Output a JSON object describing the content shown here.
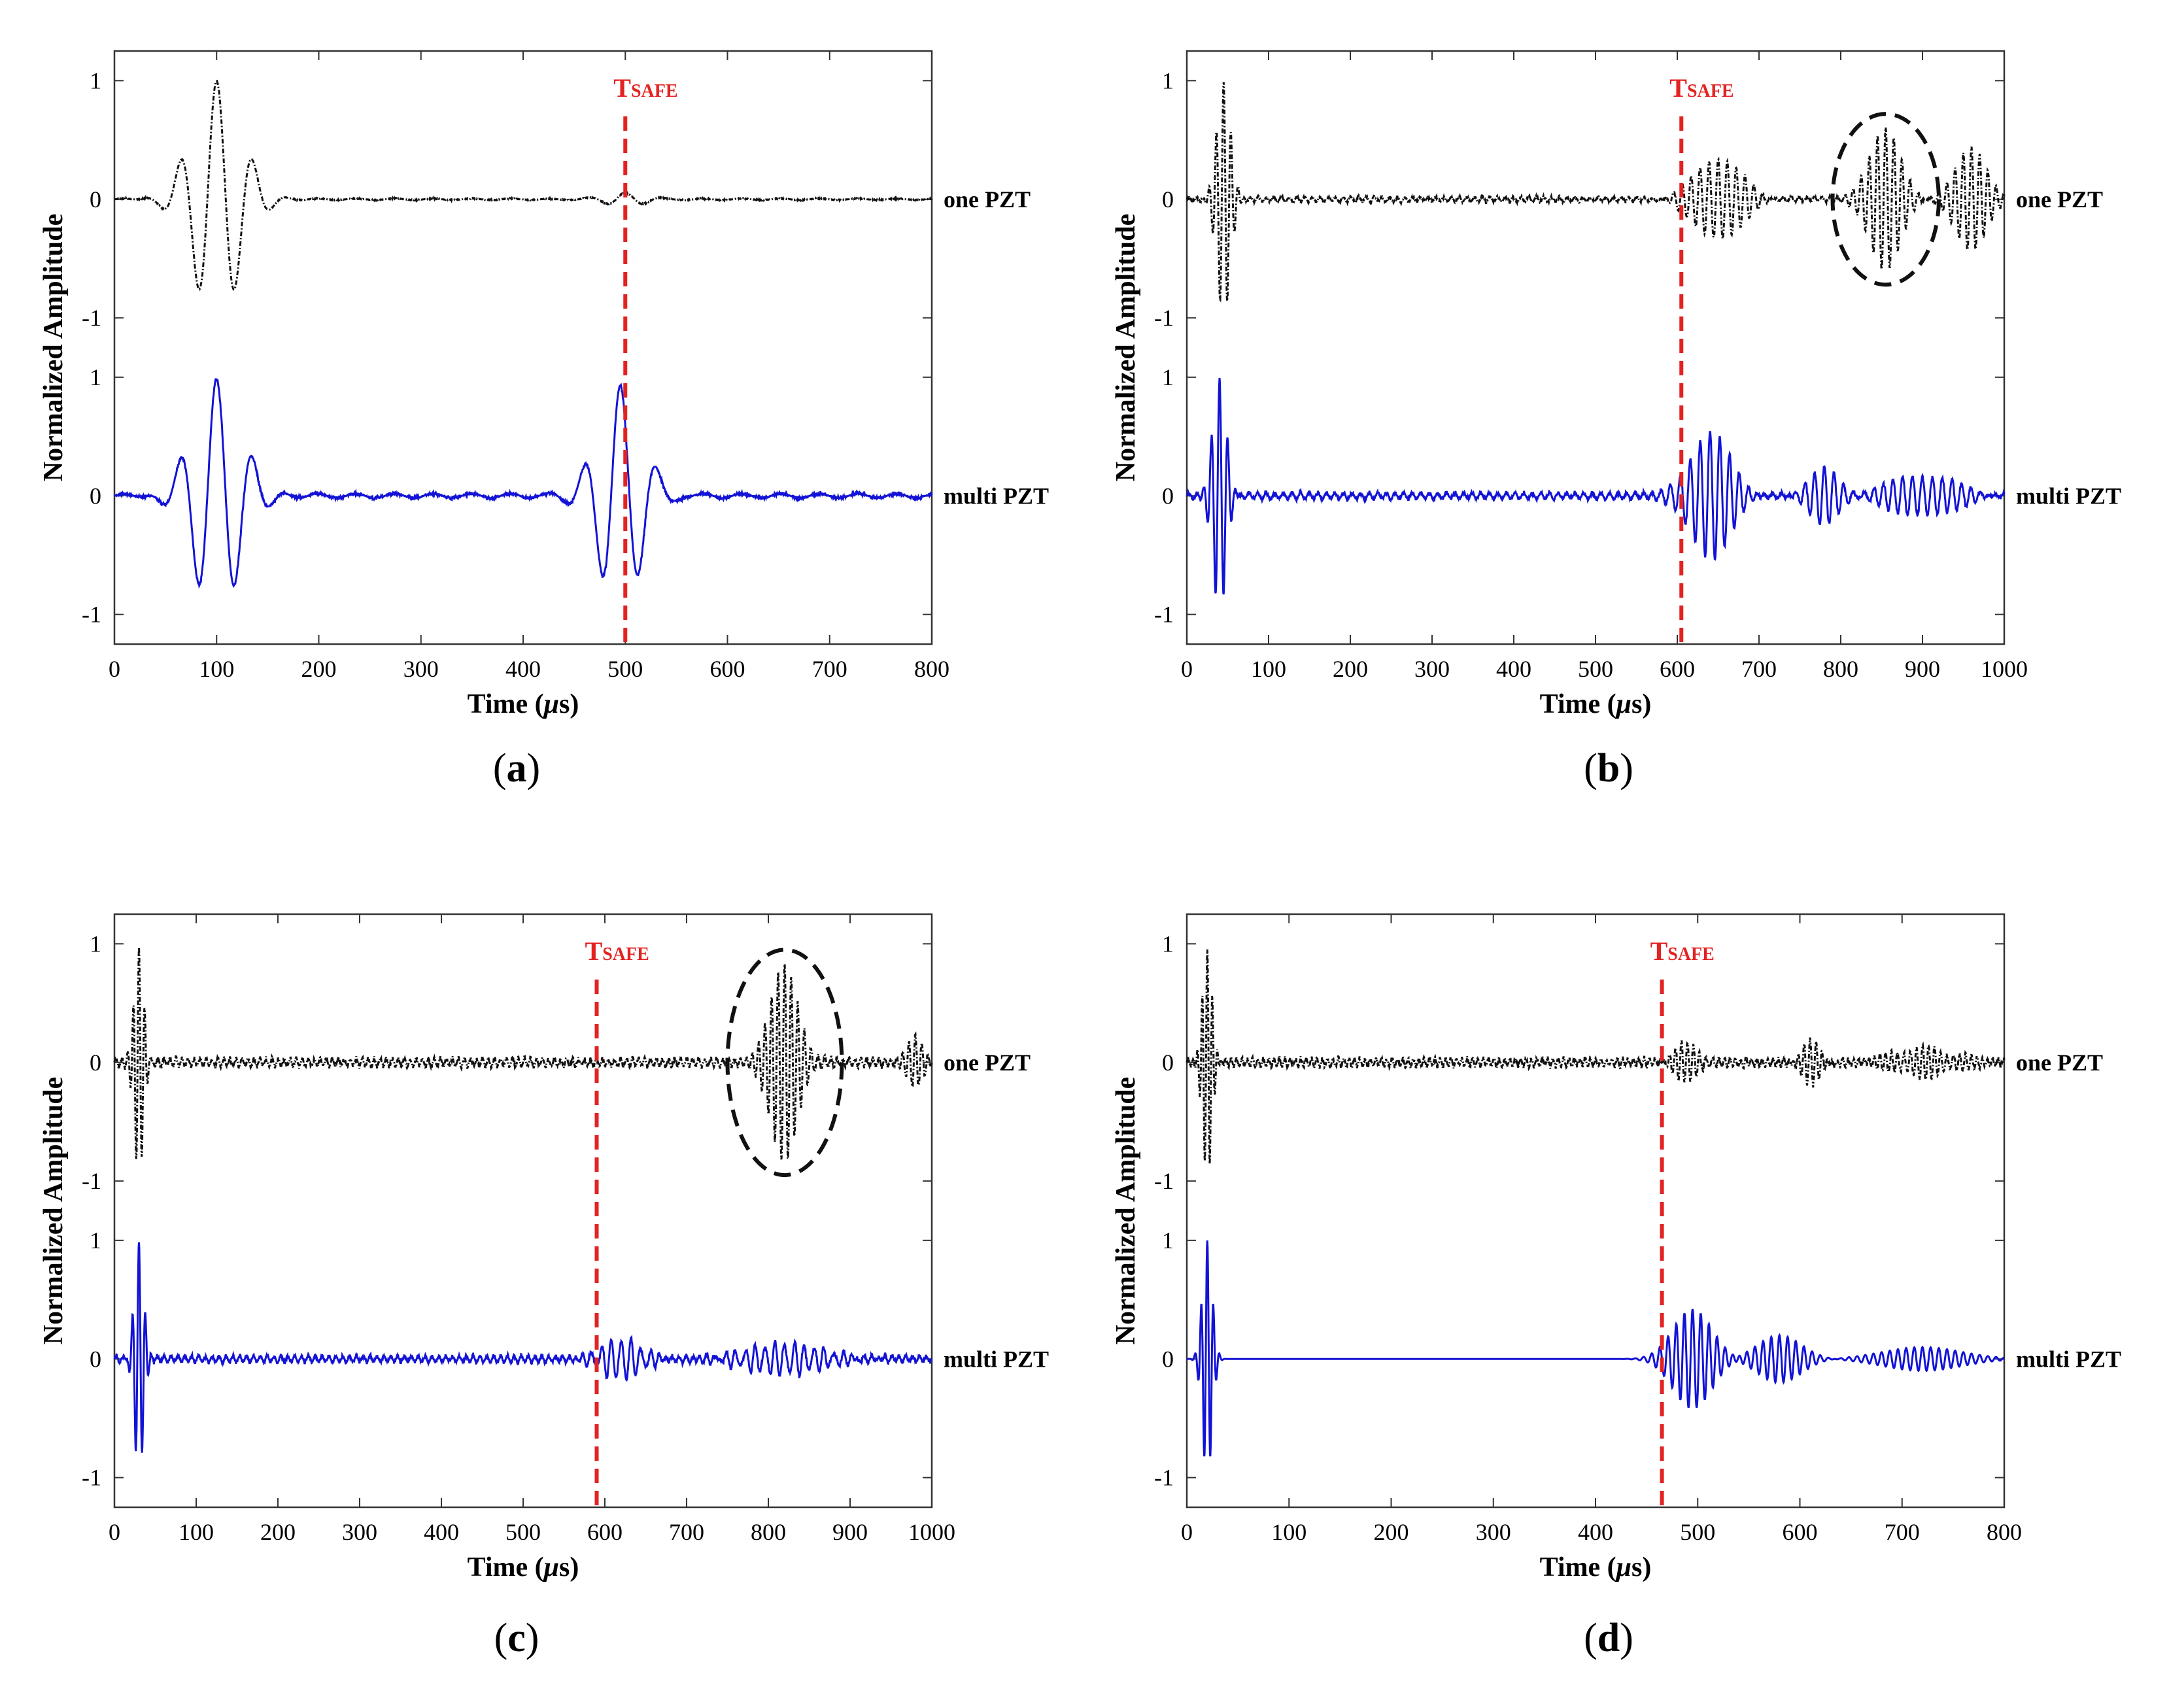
{
  "colors": {
    "one_pzt": "#111111",
    "multi_pzt": "#1313d6",
    "tsafe": "#e32222",
    "frame": "#333333"
  },
  "chart_data": [
    {
      "type": "line",
      "panel": "a",
      "caption": "a",
      "xlabel": "Time (μs)",
      "xlabel_prefix": "Time (",
      "xlabel_unit": "μ",
      "xlabel_suffix": "s)",
      "ylabel": "Normalized Amplitude",
      "xlim": [
        0,
        800
      ],
      "xticks": [
        0,
        100,
        200,
        300,
        400,
        500,
        600,
        700,
        800
      ],
      "yticks_top": [
        1,
        0,
        -1
      ],
      "yticks_bottom": [
        1,
        0,
        -1
      ],
      "tsafe": 500,
      "tsafe_label": "T",
      "tsafe_sub": "SAFE",
      "series": [
        {
          "name": "one PZT",
          "style": "dashdot",
          "bursts": [
            {
              "center": 100,
              "width": 50,
              "amp": 1.0,
              "period": 36
            },
            {
              "center": 500,
              "width": 40,
              "amp": 0.05,
              "period": 36
            }
          ],
          "noise": 0.01
        },
        {
          "name": "multi PZT",
          "style": "solid",
          "bursts": [
            {
              "center": 100,
              "width": 50,
              "amp": 1.0,
              "period": 36
            },
            {
              "center": 495,
              "width": 45,
              "amp": 0.92,
              "period": 36
            }
          ],
          "noise": 0.03
        }
      ]
    },
    {
      "type": "line",
      "panel": "b",
      "caption": "b",
      "xlabel": "Time (μs)",
      "xlabel_prefix": "Time (",
      "xlabel_unit": "μ",
      "xlabel_suffix": "s)",
      "ylabel": "Normalized Amplitude",
      "xlim": [
        0,
        1000
      ],
      "xticks": [
        0,
        100,
        200,
        300,
        400,
        500,
        600,
        700,
        800,
        900,
        1000
      ],
      "yticks_top": [
        1,
        0,
        -1
      ],
      "yticks_bottom": [
        1,
        0,
        -1
      ],
      "tsafe": 605,
      "tsafe_label": "T",
      "tsafe_sub": "SAFE",
      "ellipse": {
        "center_x": 855,
        "center_y": 0,
        "half_width_x": 65,
        "half_height_y": 0.72
      },
      "series": [
        {
          "name": "one PZT",
          "style": "dashdot",
          "bursts": [
            {
              "center": 45,
              "width": 18,
              "amp": 1.0,
              "period": 9
            },
            {
              "center": 650,
              "width": 60,
              "amp": 0.35,
              "period": 11
            },
            {
              "center": 855,
              "width": 40,
              "amp": 0.6,
              "period": 10
            },
            {
              "center": 960,
              "width": 40,
              "amp": 0.45,
              "period": 10
            }
          ],
          "noise": 0.03
        },
        {
          "name": "multi PZT",
          "style": "solid",
          "bursts": [
            {
              "center": 40,
              "width": 18,
              "amp": 1.0,
              "period": 10
            },
            {
              "center": 640,
              "width": 50,
              "amp": 0.55,
              "period": 12
            },
            {
              "center": 780,
              "width": 40,
              "amp": 0.22,
              "period": 12
            },
            {
              "center": 900,
              "width": 80,
              "amp": 0.18,
              "period": 12
            }
          ],
          "noise": 0.04
        }
      ]
    },
    {
      "type": "line",
      "panel": "c",
      "caption": "c",
      "xlabel": "Time (μs)",
      "xlabel_prefix": "Time (",
      "xlabel_unit": "μ",
      "xlabel_suffix": "s)",
      "ylabel": "Normalized Amplitude",
      "xlim": [
        0,
        1000
      ],
      "xticks": [
        0,
        100,
        200,
        300,
        400,
        500,
        600,
        700,
        800,
        900,
        1000
      ],
      "yticks_top": [
        1,
        0,
        -1
      ],
      "yticks_bottom": [
        1,
        0,
        -1
      ],
      "tsafe": 590,
      "tsafe_label": "T",
      "tsafe_sub": "SAFE",
      "ellipse": {
        "center_x": 820,
        "center_y": 0,
        "half_width_x": 70,
        "half_height_y": 0.95
      },
      "series": [
        {
          "name": "one PZT",
          "style": "dashdot",
          "bursts": [
            {
              "center": 30,
              "width": 12,
              "amp": 0.95,
              "period": 7
            },
            {
              "center": 820,
              "width": 35,
              "amp": 0.85,
              "period": 8
            },
            {
              "center": 980,
              "width": 20,
              "amp": 0.2,
              "period": 8
            }
          ],
          "noise": 0.05
        },
        {
          "name": "multi PZT",
          "style": "solid",
          "bursts": [
            {
              "center": 30,
              "width": 12,
              "amp": 1.0,
              "period": 8
            },
            {
              "center": 620,
              "width": 50,
              "amp": 0.17,
              "period": 12
            },
            {
              "center": 820,
              "width": 100,
              "amp": 0.13,
              "period": 12
            }
          ],
          "noise": 0.04
        }
      ]
    },
    {
      "type": "line",
      "panel": "d",
      "caption": "d",
      "xlabel": "Time (μs)",
      "xlabel_prefix": "Time (",
      "xlabel_unit": "μ",
      "xlabel_suffix": "s)",
      "ylabel": "Normalized Amplitude",
      "xlim": [
        0,
        800
      ],
      "xticks": [
        0,
        100,
        200,
        300,
        400,
        500,
        600,
        700,
        800
      ],
      "yticks_top": [
        1,
        0,
        -1
      ],
      "yticks_bottom": [
        1,
        0,
        -1
      ],
      "tsafe": 465,
      "tsafe_label": "T",
      "tsafe_sub": "SAFE",
      "series": [
        {
          "name": "one PZT",
          "style": "dashdot",
          "bursts": [
            {
              "center": 20,
              "width": 10,
              "amp": 1.0,
              "period": 5
            },
            {
              "center": 490,
              "width": 30,
              "amp": 0.15,
              "period": 6
            },
            {
              "center": 610,
              "width": 20,
              "amp": 0.17,
              "period": 6
            },
            {
              "center": 720,
              "width": 60,
              "amp": 0.12,
              "period": 6
            }
          ],
          "noise": 0.05
        },
        {
          "name": "multi PZT",
          "style": "solid",
          "bursts": [
            {
              "center": 20,
              "width": 10,
              "amp": 1.0,
              "period": 6
            },
            {
              "center": 495,
              "width": 40,
              "amp": 0.42,
              "period": 8
            },
            {
              "center": 580,
              "width": 45,
              "amp": 0.2,
              "period": 8
            },
            {
              "center": 720,
              "width": 80,
              "amp": 0.1,
              "period": 8
            }
          ],
          "noise": 0.0
        }
      ]
    }
  ]
}
